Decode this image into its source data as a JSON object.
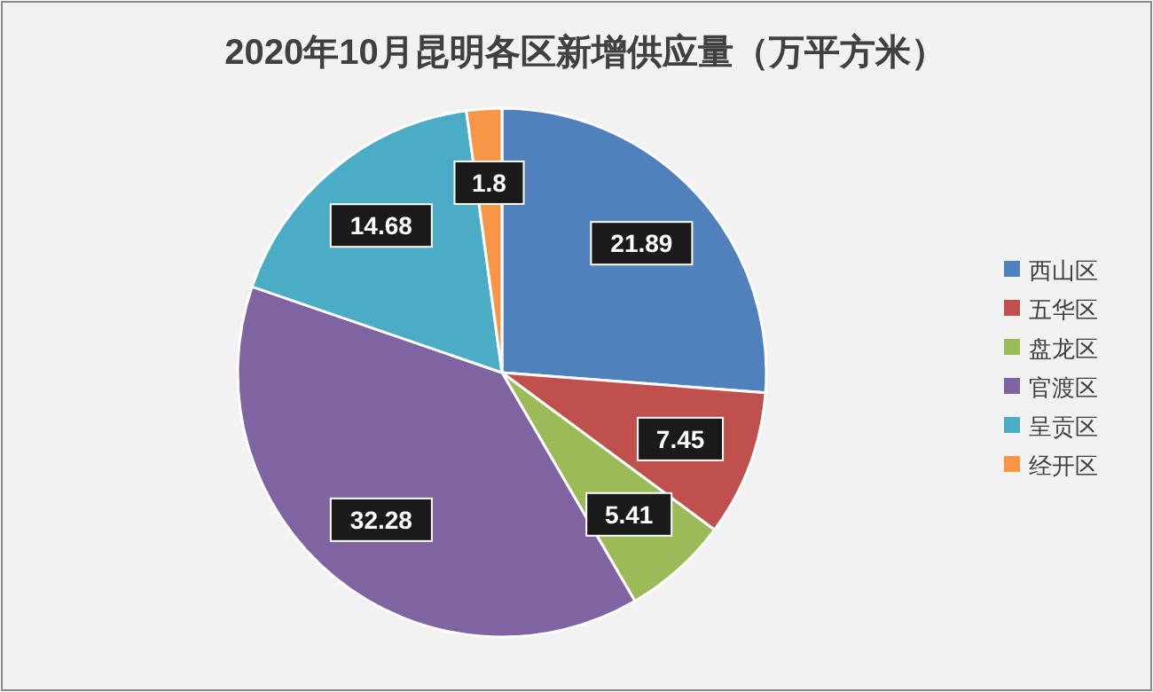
{
  "chart_data": {
    "type": "pie",
    "title": "2020年10月昆明各区新增供应量（万平方米）",
    "categories": [
      "西山区",
      "五华区",
      "盘龙区",
      "官渡区",
      "呈贡区",
      "经开区"
    ],
    "values": [
      21.89,
      7.45,
      5.41,
      32.28,
      14.68,
      1.8
    ],
    "colors": [
      "#4f81bd",
      "#c0504d",
      "#9bbb59",
      "#8064a2",
      "#4bacc6",
      "#f79646"
    ],
    "data_labels": true,
    "legend": "right"
  }
}
